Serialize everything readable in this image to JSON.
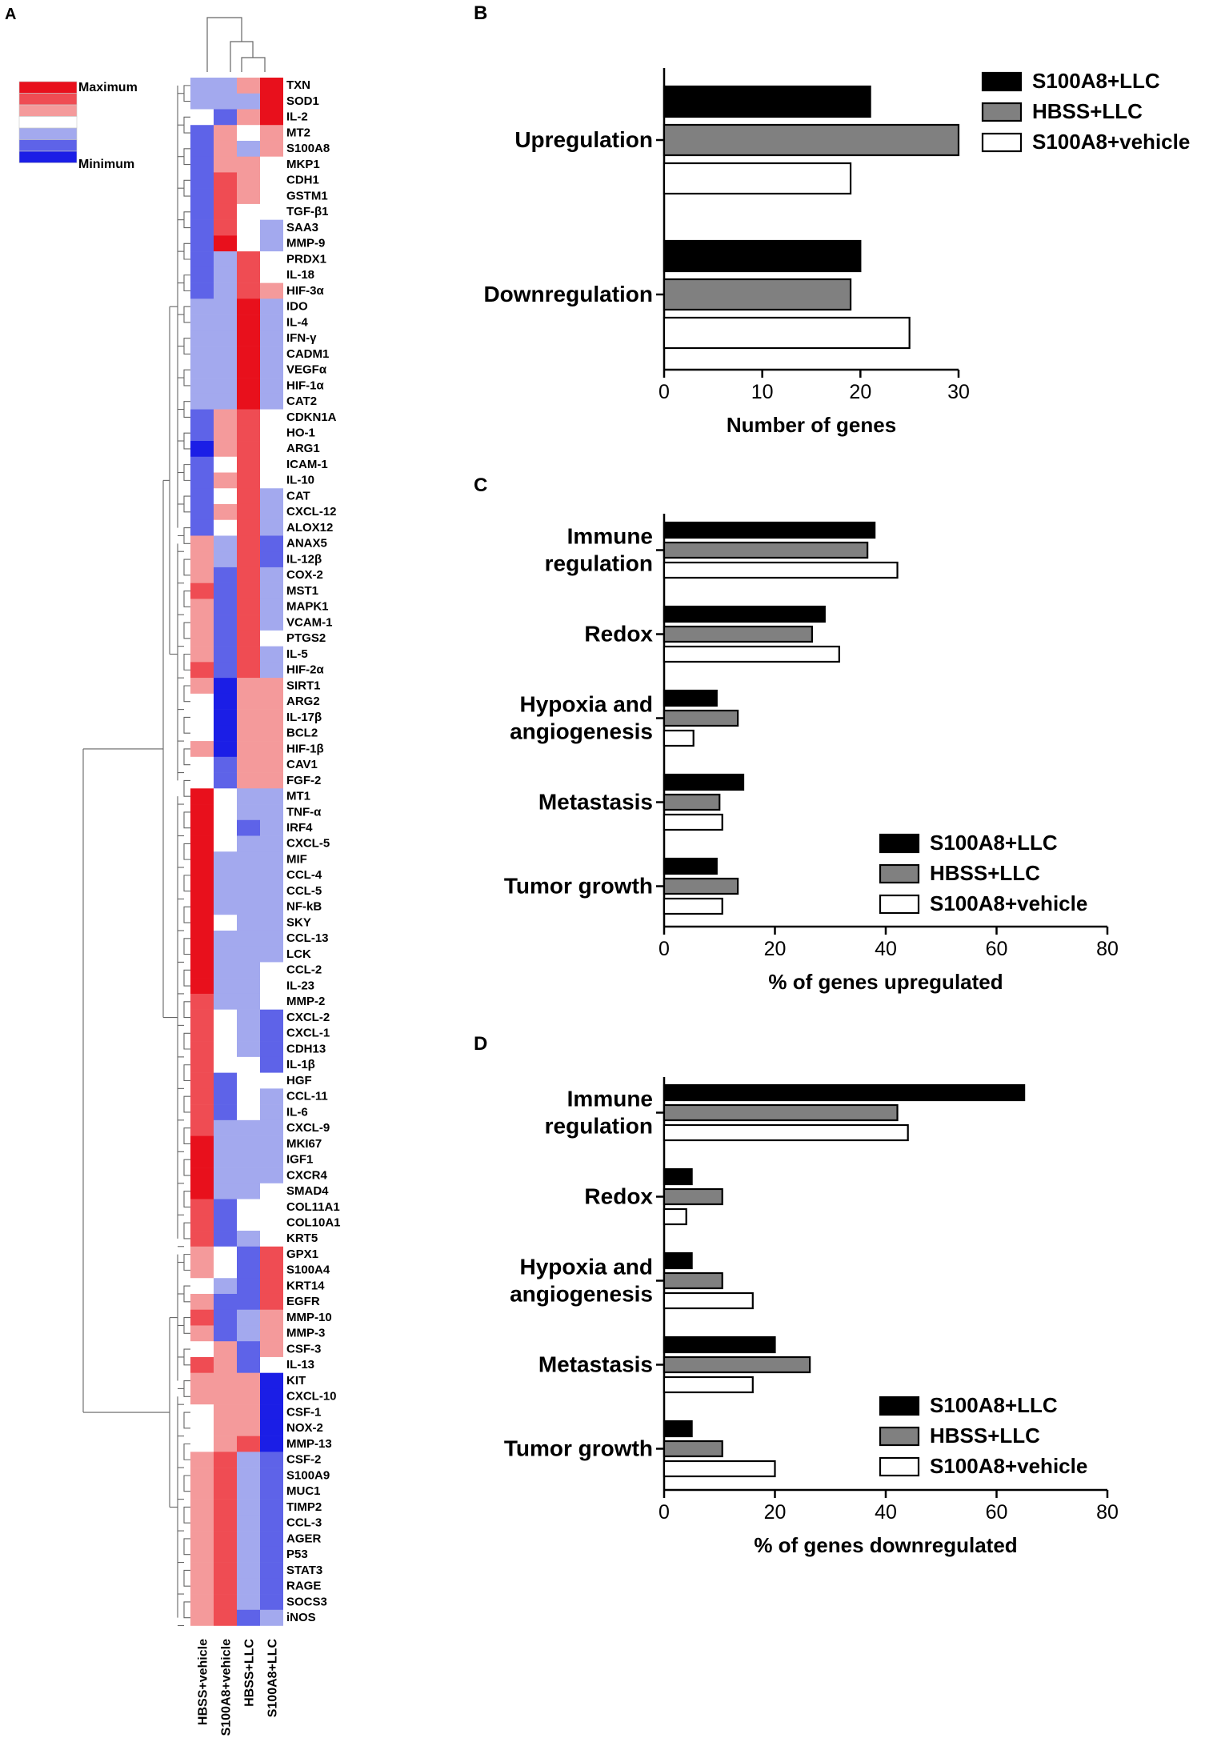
{
  "panel_labels": [
    "A",
    "B",
    "C",
    "D"
  ],
  "heatmap_legend": {
    "max_label": "Maximum",
    "min_label": "Minimum",
    "colors": [
      "#e8101c",
      "#ef4c53",
      "#f49a9b",
      "#ffffff",
      "#a3a9ee",
      "#5e63e8",
      "#1b1ee6"
    ]
  },
  "chart_data": [
    {
      "type": "heatmap",
      "panel": "A",
      "title": "",
      "color_scale": {
        "levels": [
          -3,
          -2,
          -1,
          0,
          1,
          2,
          3
        ],
        "level_meaning": "-3 = Minimum (blue) ... 3 = Maximum (red)",
        "colors": [
          "#1b1ee6",
          "#5e63e8",
          "#a3a9ee",
          "#ffffff",
          "#f49a9b",
          "#ef4c53",
          "#e8101c"
        ]
      },
      "columns": [
        "HBSS+vehicle",
        "S100A8+vehicle",
        "HBSS+LLC",
        "S100A8+LLC"
      ],
      "rows": [
        "TXN",
        "SOD1",
        "IL-2",
        "MT2",
        "S100A8",
        "MKP1",
        "CDH1",
        "GSTM1",
        "TGF-β1",
        "SAA3",
        "MMP-9",
        "PRDX1",
        "IL-18",
        "HIF-3α",
        "IDO",
        "IL-4",
        "IFN-γ",
        "CADM1",
        "VEGFα",
        "HIF-1α",
        "CAT2",
        "CDKN1A",
        "HO-1",
        "ARG1",
        "ICAM-1",
        "IL-10",
        "CAT",
        "CXCL-12",
        "ALOX12",
        "ANAX5",
        "IL-12β",
        "COX-2",
        "MST1",
        "MAPK1",
        "VCAM-1",
        "PTGS2",
        "IL-5",
        "HIF-2α",
        "SIRT1",
        "ARG2",
        "IL-17β",
        "BCL2",
        "HIF-1β",
        "CAV1",
        "FGF-2",
        "MT1",
        "TNF-α",
        "IRF4",
        "CXCL-5",
        "MIF",
        "CCL-4",
        "CCL-5",
        "NF-kB",
        "SKY",
        "CCL-13",
        "LCK",
        "CCL-2",
        "IL-23",
        "MMP-2",
        "CXCL-2",
        "CXCL-1",
        "CDH13",
        "IL-1β",
        "HGF",
        "CCL-11",
        "IL-6",
        "CXCL-9",
        "MKI67",
        "IGF1",
        "CXCR4",
        "SMAD4",
        "COL11A1",
        "COL10A1",
        "KRT5",
        "GPX1",
        "S100A4",
        "KRT14",
        "EGFR",
        "MMP-10",
        "MMP-3",
        "CSF-3",
        "IL-13",
        "KIT",
        "CXCL-10",
        "CSF-1",
        "NOX-2",
        "MMP-13",
        "CSF-2",
        "S100A9",
        "MUC1",
        "TIMP2",
        "CCL-3",
        "AGER",
        "P53",
        "STAT3",
        "RAGE",
        "SOCS3",
        "iNOS"
      ],
      "values": [
        [
          -1,
          -1,
          1,
          3
        ],
        [
          -1,
          -1,
          -1,
          3
        ],
        [
          0,
          -2,
          1,
          3
        ],
        [
          -2,
          1,
          0,
          1
        ],
        [
          -2,
          1,
          -1,
          1
        ],
        [
          -2,
          1,
          1,
          0
        ],
        [
          -2,
          2,
          1,
          0
        ],
        [
          -2,
          2,
          1,
          0
        ],
        [
          -2,
          2,
          0,
          0
        ],
        [
          -2,
          2,
          0,
          -1
        ],
        [
          -2,
          3,
          0,
          -1
        ],
        [
          -2,
          -1,
          2,
          0
        ],
        [
          -2,
          -1,
          2,
          0
        ],
        [
          -2,
          -1,
          2,
          1
        ],
        [
          -1,
          -1,
          3,
          -1
        ],
        [
          -1,
          -1,
          3,
          -1
        ],
        [
          -1,
          -1,
          3,
          -1
        ],
        [
          -1,
          -1,
          3,
          -1
        ],
        [
          -1,
          -1,
          3,
          -1
        ],
        [
          -1,
          -1,
          3,
          -1
        ],
        [
          -1,
          -1,
          3,
          -1
        ],
        [
          -2,
          1,
          2,
          0
        ],
        [
          -2,
          1,
          2,
          0
        ],
        [
          -3,
          1,
          2,
          0
        ],
        [
          -2,
          0,
          2,
          0
        ],
        [
          -2,
          1,
          2,
          0
        ],
        [
          -2,
          0,
          2,
          -1
        ],
        [
          -2,
          1,
          2,
          -1
        ],
        [
          -2,
          0,
          2,
          -1
        ],
        [
          1,
          -1,
          2,
          -2
        ],
        [
          1,
          -1,
          2,
          -2
        ],
        [
          1,
          -2,
          2,
          -1
        ],
        [
          2,
          -2,
          2,
          -1
        ],
        [
          1,
          -2,
          2,
          -1
        ],
        [
          1,
          -2,
          2,
          -1
        ],
        [
          1,
          -2,
          2,
          0
        ],
        [
          1,
          -2,
          2,
          -1
        ],
        [
          2,
          -2,
          2,
          -1
        ],
        [
          1,
          -3,
          1,
          1
        ],
        [
          0,
          -3,
          1,
          1
        ],
        [
          0,
          -3,
          1,
          1
        ],
        [
          0,
          -3,
          1,
          1
        ],
        [
          1,
          -3,
          1,
          1
        ],
        [
          0,
          -2,
          1,
          1
        ],
        [
          0,
          -2,
          1,
          1
        ],
        [
          3,
          0,
          -1,
          -1
        ],
        [
          3,
          0,
          -1,
          -1
        ],
        [
          3,
          0,
          -2,
          -1
        ],
        [
          3,
          0,
          -1,
          -1
        ],
        [
          3,
          -1,
          -1,
          -1
        ],
        [
          3,
          -1,
          -1,
          -1
        ],
        [
          3,
          -1,
          -1,
          -1
        ],
        [
          3,
          -1,
          -1,
          -1
        ],
        [
          3,
          0,
          -1,
          -1
        ],
        [
          3,
          -1,
          -1,
          -1
        ],
        [
          3,
          -1,
          -1,
          -1
        ],
        [
          3,
          -1,
          -1,
          0
        ],
        [
          3,
          -1,
          -1,
          0
        ],
        [
          2,
          -1,
          -1,
          0
        ],
        [
          2,
          0,
          -1,
          -2
        ],
        [
          2,
          0,
          -1,
          -2
        ],
        [
          2,
          0,
          -1,
          -2
        ],
        [
          2,
          0,
          0,
          -2
        ],
        [
          2,
          -2,
          0,
          0
        ],
        [
          2,
          -2,
          0,
          -1
        ],
        [
          2,
          -2,
          0,
          -1
        ],
        [
          2,
          -1,
          -1,
          -1
        ],
        [
          3,
          -1,
          -1,
          -1
        ],
        [
          3,
          -1,
          -1,
          -1
        ],
        [
          3,
          -1,
          -1,
          -1
        ],
        [
          3,
          -1,
          -1,
          0
        ],
        [
          2,
          -2,
          0,
          0
        ],
        [
          2,
          -2,
          0,
          0
        ],
        [
          2,
          -2,
          -1,
          0
        ],
        [
          1,
          0,
          -2,
          2
        ],
        [
          1,
          0,
          -2,
          2
        ],
        [
          0,
          -1,
          -2,
          2
        ],
        [
          1,
          -2,
          -2,
          2
        ],
        [
          2,
          -2,
          -1,
          1
        ],
        [
          1,
          -2,
          -1,
          1
        ],
        [
          0,
          1,
          -2,
          1
        ],
        [
          2,
          1,
          -2,
          0
        ],
        [
          1,
          1,
          1,
          -3
        ],
        [
          1,
          1,
          1,
          -3
        ],
        [
          0,
          1,
          1,
          -3
        ],
        [
          0,
          1,
          1,
          -3
        ],
        [
          0,
          1,
          2,
          -3
        ],
        [
          1,
          2,
          -1,
          -2
        ],
        [
          1,
          2,
          -1,
          -2
        ],
        [
          1,
          2,
          -1,
          -2
        ],
        [
          1,
          2,
          -1,
          -2
        ],
        [
          1,
          2,
          -1,
          -2
        ],
        [
          1,
          2,
          -1,
          -2
        ],
        [
          1,
          2,
          -1,
          -2
        ],
        [
          1,
          2,
          -1,
          -2
        ],
        [
          1,
          2,
          -1,
          -2
        ],
        [
          1,
          2,
          -1,
          -2
        ],
        [
          1,
          2,
          -2,
          -1
        ]
      ]
    },
    {
      "type": "bar",
      "panel": "B",
      "orientation": "horizontal",
      "title": "",
      "categories": [
        "Upregulation",
        "Downregulation"
      ],
      "series": [
        {
          "name": "S100A8+LLC",
          "color": "#000000",
          "values": [
            21,
            20
          ]
        },
        {
          "name": "HBSS+LLC",
          "color": "#808080",
          "values": [
            30,
            19
          ]
        },
        {
          "name": "S100A8+vehicle",
          "color": "#ffffff",
          "values": [
            19,
            25
          ]
        }
      ],
      "xlabel": "Number of genes",
      "ylabel": "",
      "xlim": [
        0,
        30
      ],
      "xticks": [
        0,
        10,
        20,
        30
      ],
      "grid": false,
      "legend": "top-right"
    },
    {
      "type": "bar",
      "panel": "C",
      "orientation": "horizontal",
      "title": "",
      "categories": [
        "Immune regulation",
        "Redox",
        "Hypoxia and angiogenesis",
        "Metastasis",
        "Tumor growth"
      ],
      "category_lines": [
        [
          "Immune",
          "regulation"
        ],
        [
          "Redox"
        ],
        [
          "Hypoxia and",
          "angiogenesis"
        ],
        [
          "Metastasis"
        ],
        [
          "Tumor growth"
        ]
      ],
      "series": [
        {
          "name": "S100A8+LLC",
          "color": "#000000",
          "values": [
            38,
            29,
            9.5,
            14.3,
            9.5
          ]
        },
        {
          "name": "HBSS+LLC",
          "color": "#808080",
          "values": [
            36.7,
            26.7,
            13.3,
            10,
            13.3
          ]
        },
        {
          "name": "S100A8+vehicle",
          "color": "#ffffff",
          "values": [
            42.1,
            31.6,
            5.3,
            10.5,
            10.5
          ]
        }
      ],
      "xlabel": "% of genes upregulated",
      "ylabel": "",
      "xlim": [
        0,
        80
      ],
      "xticks": [
        0,
        20,
        40,
        60,
        80
      ],
      "grid": false,
      "legend": "bottom-right"
    },
    {
      "type": "bar",
      "panel": "D",
      "orientation": "horizontal",
      "title": "",
      "categories": [
        "Immune regulation",
        "Redox",
        "Hypoxia and angiogenesis",
        "Metastasis",
        "Tumor growth"
      ],
      "category_lines": [
        [
          "Immune",
          "regulation"
        ],
        [
          "Redox"
        ],
        [
          "Hypoxia and",
          "angiogenesis"
        ],
        [
          "Metastasis"
        ],
        [
          "Tumor growth"
        ]
      ],
      "series": [
        {
          "name": "S100A8+LLC",
          "color": "#000000",
          "values": [
            65,
            5,
            5,
            20,
            5
          ]
        },
        {
          "name": "HBSS+LLC",
          "color": "#808080",
          "values": [
            42.1,
            10.5,
            10.5,
            26.3,
            10.5
          ]
        },
        {
          "name": "S100A8+vehicle",
          "color": "#ffffff",
          "values": [
            44,
            4,
            16,
            16,
            20
          ]
        }
      ],
      "xlabel": "% of genes downregulated",
      "ylabel": "",
      "xlim": [
        0,
        80
      ],
      "xticks": [
        0,
        20,
        40,
        60,
        80
      ],
      "grid": false,
      "legend": "bottom-right"
    }
  ]
}
